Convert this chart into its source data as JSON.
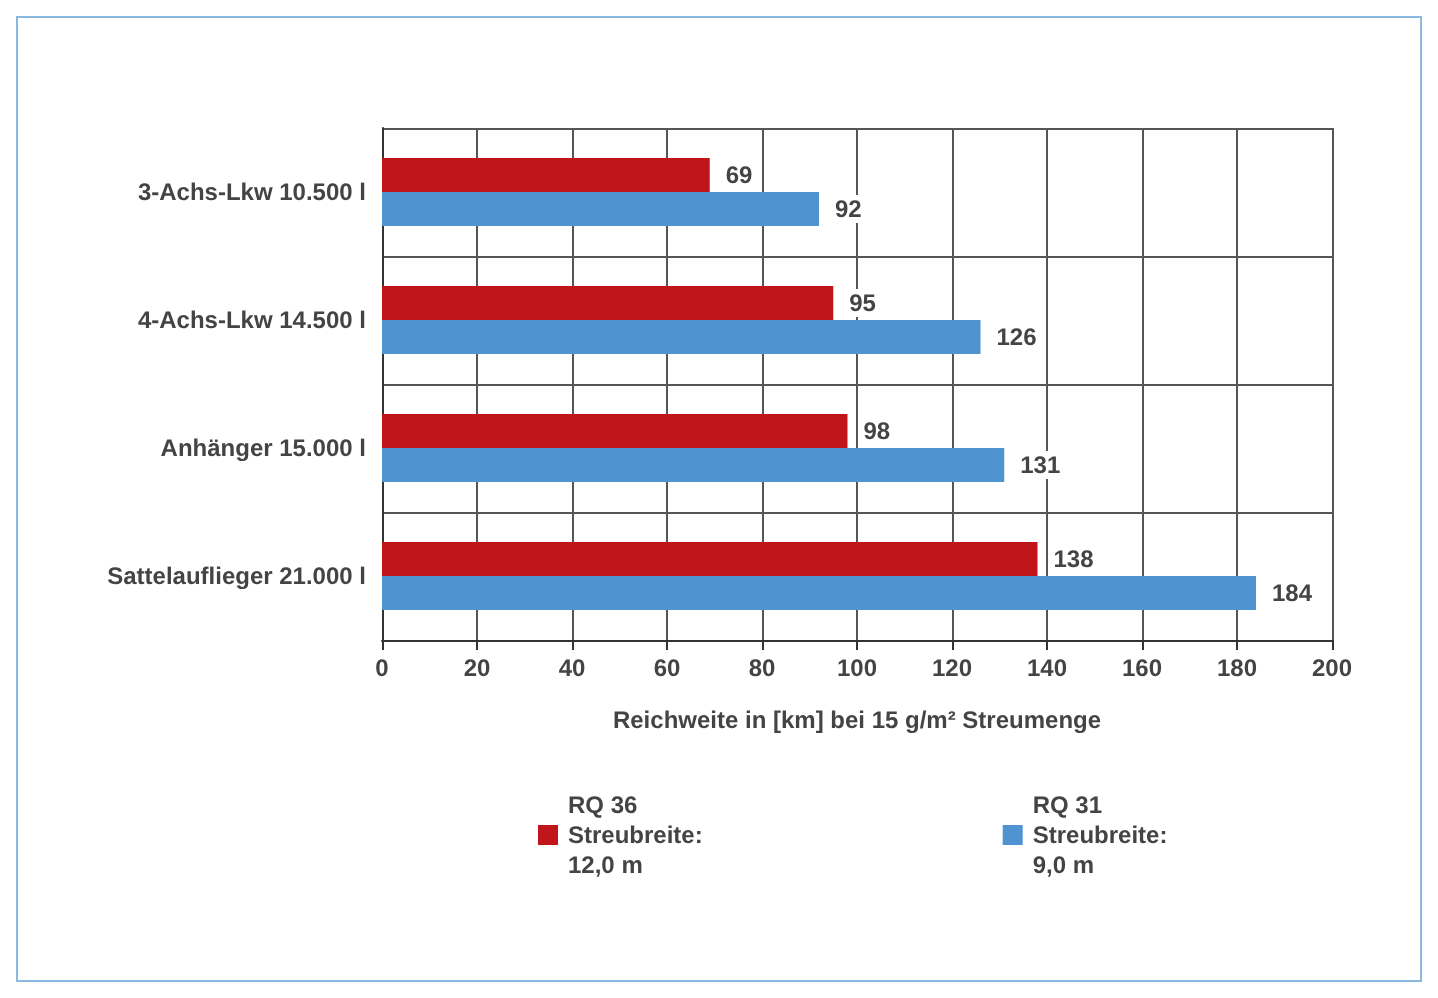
{
  "chart_data": {
    "type": "bar",
    "orientation": "horizontal",
    "xlabel": "Reichweite in [km] bei 15 g/m² Streumenge",
    "categories": [
      "3-Achs-Lkw 10.500 l",
      "4-Achs-Lkw 14.500 l",
      "Anhänger 15.000 l",
      "Sattelauflieger 21.000 l"
    ],
    "series": [
      {
        "name": "RQ 36\nStreubreite:\n12,0 m",
        "color": "#c0161b",
        "values": [
          69,
          95,
          98,
          138
        ]
      },
      {
        "name": "RQ 31\nStreubreite:\n9,0 m",
        "color": "#4f93d0",
        "values": [
          92,
          126,
          131,
          184
        ]
      }
    ],
    "xlim": [
      0,
      200
    ],
    "xticks": [
      0,
      20,
      40,
      60,
      80,
      100,
      120,
      140,
      160,
      180,
      200
    ],
    "grid": true,
    "legend": "bottom",
    "data_labels": true
  }
}
